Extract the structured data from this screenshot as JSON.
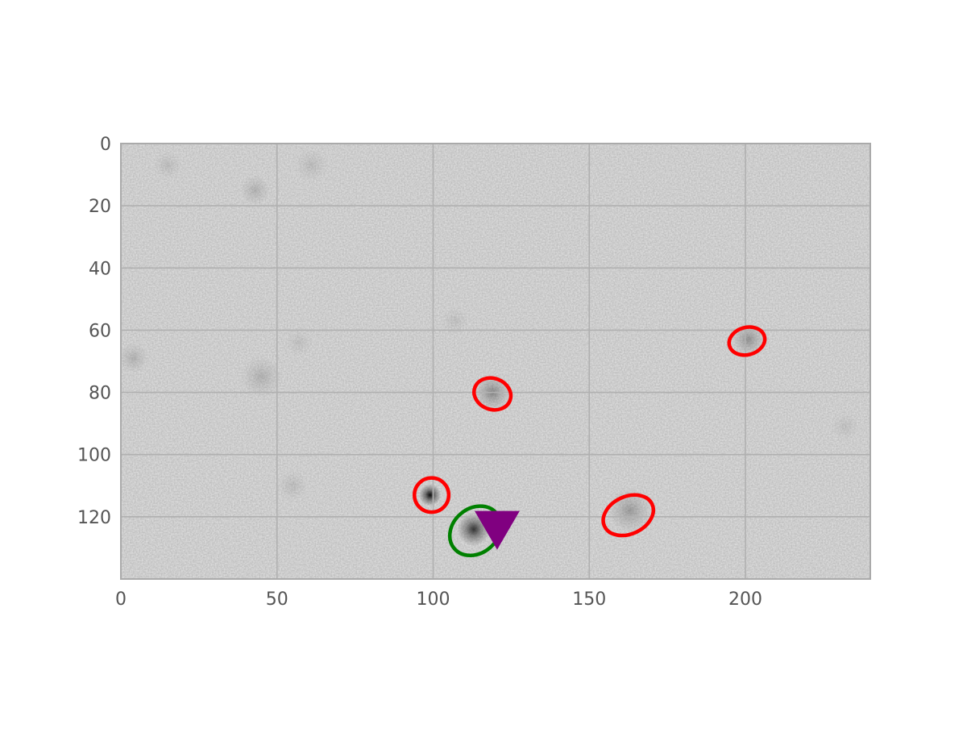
{
  "plot": {
    "x_range": [
      0,
      240
    ],
    "y_range": [
      0,
      140
    ],
    "y_axis_inverted": true,
    "grid": true,
    "x_ticks": [
      0,
      50,
      100,
      150,
      200
    ],
    "y_ticks": [
      0,
      20,
      40,
      60,
      80,
      100,
      120
    ],
    "colors": {
      "background": "#e6e6e6",
      "grid": "#b0b0b0",
      "frame": "#aaaaaa",
      "tick_label": "#555555",
      "ellipse_red": "#ff0000",
      "ellipse_green": "#008000",
      "marker": "#800080"
    }
  },
  "sources": [
    {
      "x": 99,
      "y": 113,
      "darkness": 0.95,
      "spread": 1.6
    },
    {
      "x": 113,
      "y": 124,
      "darkness": 0.75,
      "spread": 2.4
    },
    {
      "x": 119,
      "y": 80,
      "darkness": 0.35,
      "spread": 2.6
    },
    {
      "x": 201,
      "y": 63,
      "darkness": 0.3,
      "spread": 2.4
    },
    {
      "x": 163,
      "y": 118,
      "darkness": 0.25,
      "spread": 3.2
    },
    {
      "x": 45,
      "y": 75,
      "darkness": 0.15,
      "spread": 3.0
    },
    {
      "x": 43,
      "y": 15,
      "darkness": 0.15,
      "spread": 2.2
    },
    {
      "x": 4,
      "y": 69,
      "darkness": 0.15,
      "spread": 2.2
    },
    {
      "x": 15,
      "y": 7,
      "darkness": 0.1,
      "spread": 2.0
    },
    {
      "x": 61,
      "y": 7,
      "darkness": 0.1,
      "spread": 2.4
    },
    {
      "x": 55,
      "y": 110,
      "darkness": 0.1,
      "spread": 2.2
    },
    {
      "x": 57,
      "y": 64,
      "darkness": 0.08,
      "spread": 2.0
    },
    {
      "x": 107,
      "y": 57,
      "darkness": 0.08,
      "spread": 2.0
    },
    {
      "x": 232,
      "y": 91,
      "darkness": 0.08,
      "spread": 2.0
    }
  ],
  "ellipses": [
    {
      "x": 99.5,
      "y": 113,
      "rx": 5.5,
      "ry": 5.5,
      "angle": 0,
      "color": "red"
    },
    {
      "x": 119,
      "y": 80.5,
      "rx": 6,
      "ry": 5,
      "angle": 20,
      "color": "red"
    },
    {
      "x": 200.5,
      "y": 63.5,
      "rx": 5.8,
      "ry": 4.4,
      "angle": -15,
      "color": "red"
    },
    {
      "x": 162.5,
      "y": 119.5,
      "rx": 8.4,
      "ry": 6,
      "angle": -25,
      "color": "red"
    },
    {
      "x": 113.5,
      "y": 124.5,
      "rx": 8.8,
      "ry": 7.2,
      "angle": -40,
      "color": "green"
    }
  ],
  "markers": [
    {
      "x": 120.5,
      "y": 122,
      "shape": "triangle-down",
      "color": "purple"
    }
  ]
}
